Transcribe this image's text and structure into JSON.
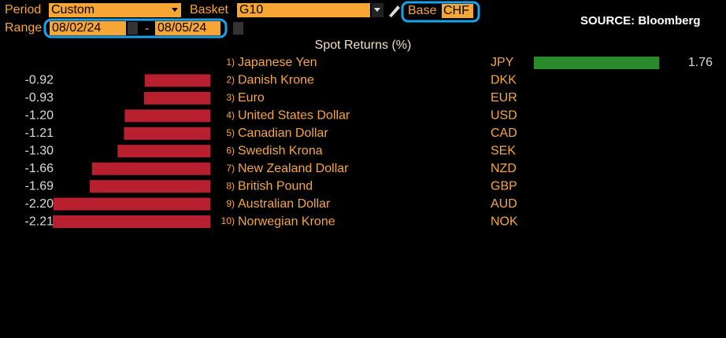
{
  "toolbar": {
    "period_label": "Period",
    "period": "Custom",
    "basket_label": "Basket",
    "basket": "G10",
    "base_label": "Base",
    "base": "CHF",
    "range_label": "Range",
    "range_start": "08/02/24",
    "range_sep": "-",
    "range_end": "08/05/24",
    "source": "SOURCE: Bloomberg"
  },
  "chart_data": {
    "type": "bar",
    "orientation": "horizontal",
    "title": "Spot Returns (%)",
    "ranks": [
      "1)",
      "2)",
      "3)",
      "4)",
      "5)",
      "6)",
      "7)",
      "8)",
      "9)",
      "10)"
    ],
    "categories": [
      "Japanese Yen",
      "Danish Krone",
      "Euro",
      "United States Dollar",
      "Canadian Dollar",
      "Swedish Krona",
      "New Zealand Dollar",
      "British Pound",
      "Australian Dollar",
      "Norwegian Krone"
    ],
    "codes": [
      "JPY",
      "DKK",
      "EUR",
      "USD",
      "CAD",
      "SEK",
      "NZD",
      "GBP",
      "AUD",
      "NOK"
    ],
    "values": [
      1.76,
      -0.92,
      -0.93,
      -1.2,
      -1.21,
      -1.3,
      -1.66,
      -1.69,
      -2.2,
      -2.21
    ],
    "value_labels": [
      "1.76",
      "-0.92",
      "-0.93",
      "-1.20",
      "-1.21",
      "-1.30",
      "-1.66",
      "-1.69",
      "-2.20",
      "-2.21"
    ],
    "positive_color": "#2b8a2b",
    "negative_color": "#b8202f"
  }
}
